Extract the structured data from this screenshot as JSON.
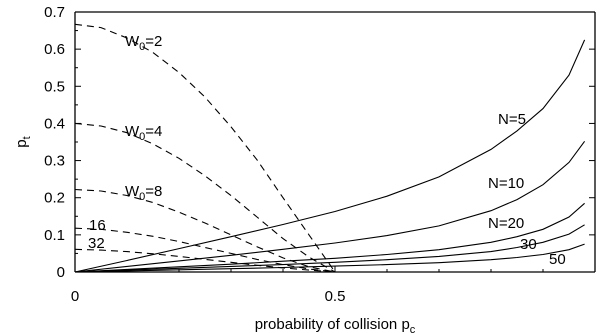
{
  "chart_data": {
    "type": "line",
    "xlabel": "probability of collision p",
    "xlabel_sub": "c",
    "ylabel": "p",
    "ylabel_sub": "t",
    "xlim": [
      0,
      1
    ],
    "ylim": [
      0,
      0.7
    ],
    "x_ticks": [
      {
        "value": 0,
        "label": "0"
      },
      {
        "value": 0.5,
        "label": "0.5"
      }
    ],
    "y_ticks": [
      {
        "value": 0,
        "label": "0"
      },
      {
        "value": 0.1,
        "label": "0.1"
      },
      {
        "value": 0.2,
        "label": "0.2"
      },
      {
        "value": 0.3,
        "label": "0.3"
      },
      {
        "value": 0.4,
        "label": "0.4"
      },
      {
        "value": 0.5,
        "label": "0.5"
      },
      {
        "value": 0.6,
        "label": "0.6"
      },
      {
        "value": 0.7,
        "label": "0.7"
      }
    ],
    "grid": false,
    "series": [
      {
        "name": "W0=2",
        "label_main": "W",
        "label_sub": "0",
        "label_tail": "=2",
        "style": "dashed",
        "x": [
          0,
          0.05,
          0.1,
          0.15,
          0.2,
          0.25,
          0.3,
          0.35,
          0.4,
          0.45,
          0.5
        ],
        "y": [
          0.667,
          0.658,
          0.63,
          0.591,
          0.537,
          0.471,
          0.391,
          0.302,
          0.2,
          0.1,
          0.0
        ]
      },
      {
        "name": "W0=4",
        "label_main": "W",
        "label_sub": "0",
        "label_tail": "=4",
        "style": "dashed",
        "x": [
          0,
          0.05,
          0.1,
          0.15,
          0.2,
          0.25,
          0.3,
          0.35,
          0.4,
          0.45,
          0.5
        ],
        "y": [
          0.4,
          0.393,
          0.375,
          0.345,
          0.306,
          0.259,
          0.206,
          0.148,
          0.09,
          0.04,
          0.0
        ]
      },
      {
        "name": "W0=8",
        "label_main": "W",
        "label_sub": "0",
        "label_tail": "=8",
        "style": "dashed",
        "x": [
          0,
          0.05,
          0.1,
          0.15,
          0.2,
          0.25,
          0.3,
          0.35,
          0.4,
          0.45,
          0.5
        ],
        "y": [
          0.222,
          0.218,
          0.206,
          0.187,
          0.161,
          0.132,
          0.1,
          0.068,
          0.038,
          0.014,
          0.0
        ]
      },
      {
        "name": "16",
        "label_main": "16",
        "label_sub": "",
        "label_tail": "",
        "style": "dashed",
        "x": [
          0,
          0.05,
          0.1,
          0.15,
          0.2,
          0.25,
          0.3,
          0.35,
          0.4,
          0.45,
          0.5
        ],
        "y": [
          0.118,
          0.115,
          0.107,
          0.096,
          0.082,
          0.066,
          0.05,
          0.034,
          0.02,
          0.008,
          0.0
        ]
      },
      {
        "name": "32",
        "label_main": "32",
        "label_sub": "",
        "label_tail": "",
        "style": "dashed",
        "x": [
          0,
          0.05,
          0.1,
          0.15,
          0.2,
          0.25,
          0.3,
          0.35,
          0.4,
          0.45,
          0.5
        ],
        "y": [
          0.061,
          0.059,
          0.055,
          0.049,
          0.042,
          0.034,
          0.026,
          0.018,
          0.011,
          0.005,
          0.0
        ]
      },
      {
        "name": "N=5",
        "label_main": "N=5",
        "label_sub": "",
        "label_tail": "",
        "style": "solid",
        "x": [
          0,
          0.1,
          0.2,
          0.3,
          0.4,
          0.5,
          0.6,
          0.7,
          0.8,
          0.85,
          0.9,
          0.95,
          0.98
        ],
        "y": [
          0.0,
          0.031,
          0.063,
          0.095,
          0.128,
          0.163,
          0.204,
          0.256,
          0.33,
          0.38,
          0.44,
          0.53,
          0.625
        ]
      },
      {
        "name": "N=10",
        "label_main": "N=10",
        "label_sub": "",
        "label_tail": "",
        "style": "solid",
        "x": [
          0,
          0.1,
          0.2,
          0.3,
          0.4,
          0.5,
          0.6,
          0.7,
          0.8,
          0.85,
          0.9,
          0.95,
          0.98
        ],
        "y": [
          0.0,
          0.015,
          0.03,
          0.045,
          0.061,
          0.078,
          0.098,
          0.124,
          0.165,
          0.195,
          0.235,
          0.295,
          0.352
        ]
      },
      {
        "name": "N=20",
        "label_main": "N=20",
        "label_sub": "",
        "label_tail": "",
        "style": "solid",
        "x": [
          0,
          0.1,
          0.2,
          0.3,
          0.4,
          0.5,
          0.6,
          0.7,
          0.8,
          0.85,
          0.9,
          0.95,
          0.98
        ],
        "y": [
          0.0,
          0.007,
          0.014,
          0.021,
          0.029,
          0.037,
          0.047,
          0.06,
          0.08,
          0.095,
          0.115,
          0.148,
          0.185
        ]
      },
      {
        "name": "30",
        "label_main": "30",
        "label_sub": "",
        "label_tail": "",
        "style": "solid",
        "x": [
          0,
          0.1,
          0.2,
          0.3,
          0.4,
          0.5,
          0.6,
          0.7,
          0.8,
          0.85,
          0.9,
          0.95,
          0.98
        ],
        "y": [
          0.0,
          0.005,
          0.01,
          0.015,
          0.02,
          0.026,
          0.033,
          0.042,
          0.055,
          0.066,
          0.08,
          0.102,
          0.127
        ]
      },
      {
        "name": "50",
        "label_main": "50",
        "label_sub": "",
        "label_tail": "",
        "style": "solid",
        "x": [
          0,
          0.1,
          0.2,
          0.3,
          0.4,
          0.5,
          0.6,
          0.7,
          0.8,
          0.85,
          0.9,
          0.95,
          0.98
        ],
        "y": [
          0.0,
          0.003,
          0.006,
          0.009,
          0.012,
          0.016,
          0.02,
          0.025,
          0.033,
          0.039,
          0.047,
          0.06,
          0.075
        ]
      }
    ]
  }
}
